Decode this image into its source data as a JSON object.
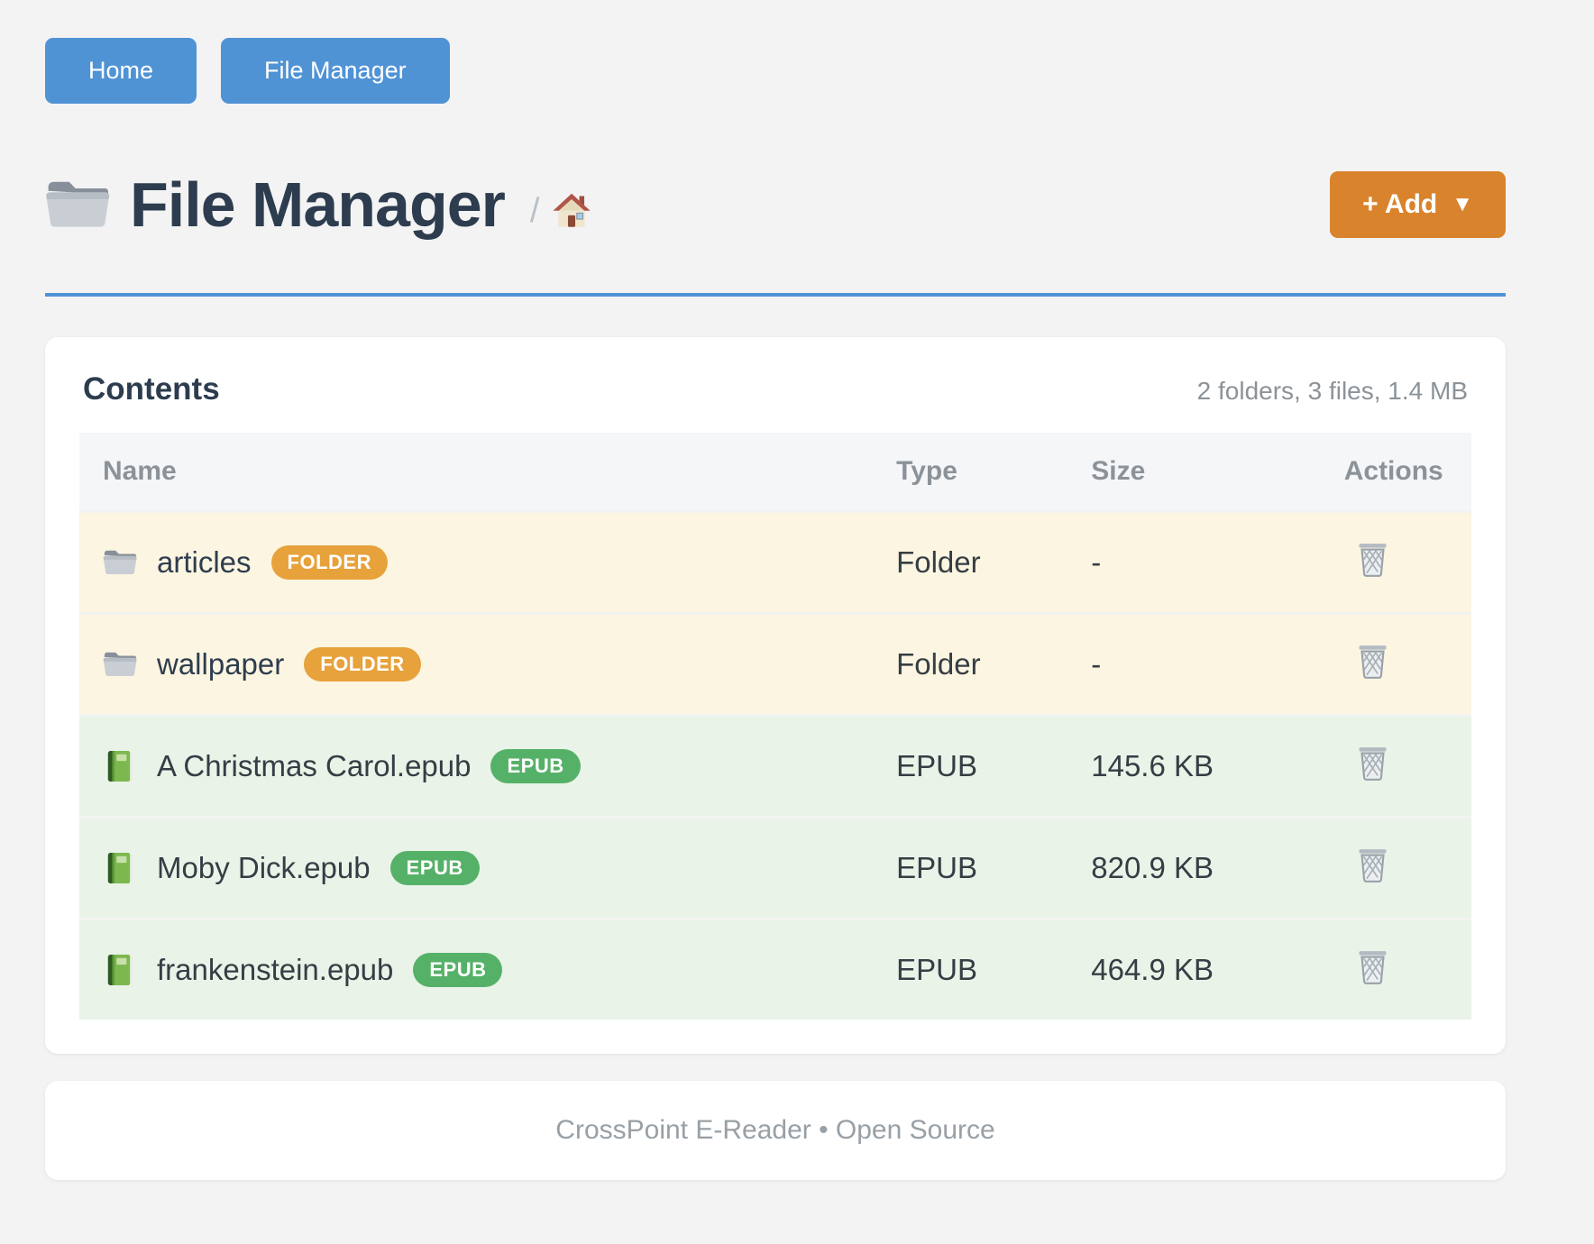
{
  "colors": {
    "accent_blue": "#4f93d5",
    "accent_orange": "#d9832d",
    "badge_folder": "#e7a23c",
    "badge_epub": "#56b168",
    "row_folder_bg": "#fcf5e1",
    "row_epub_bg": "#e9f3e8"
  },
  "nav": {
    "home_label": "Home",
    "file_manager_label": "File Manager"
  },
  "header": {
    "title": "File Manager",
    "title_icon": "folder-icon",
    "breadcrumb_separator": "/",
    "breadcrumb_home_icon": "house-icon",
    "add_label": "+ Add",
    "add_caret": "▼"
  },
  "contents": {
    "heading": "Contents",
    "summary": "2 folders, 3 files, 1.4 MB",
    "columns": {
      "name": "Name",
      "type": "Type",
      "size": "Size",
      "actions": "Actions"
    },
    "rows": [
      {
        "icon": "folder-icon",
        "name": "articles",
        "badge": "FOLDER",
        "type": "Folder",
        "size": "-",
        "kind": "folder",
        "action_icon": "trash-icon"
      },
      {
        "icon": "folder-icon",
        "name": "wallpaper",
        "badge": "FOLDER",
        "type": "Folder",
        "size": "-",
        "kind": "folder",
        "action_icon": "trash-icon"
      },
      {
        "icon": "book-icon",
        "name": "A Christmas Carol.epub",
        "badge": "EPUB",
        "type": "EPUB",
        "size": "145.6 KB",
        "kind": "epub",
        "action_icon": "trash-icon"
      },
      {
        "icon": "book-icon",
        "name": "Moby Dick.epub",
        "badge": "EPUB",
        "type": "EPUB",
        "size": "820.9 KB",
        "kind": "epub",
        "action_icon": "trash-icon"
      },
      {
        "icon": "book-icon",
        "name": "frankenstein.epub",
        "badge": "EPUB",
        "type": "EPUB",
        "size": "464.9 KB",
        "kind": "epub",
        "action_icon": "trash-icon"
      }
    ]
  },
  "footer": {
    "text": "CrossPoint E-Reader • Open Source"
  }
}
